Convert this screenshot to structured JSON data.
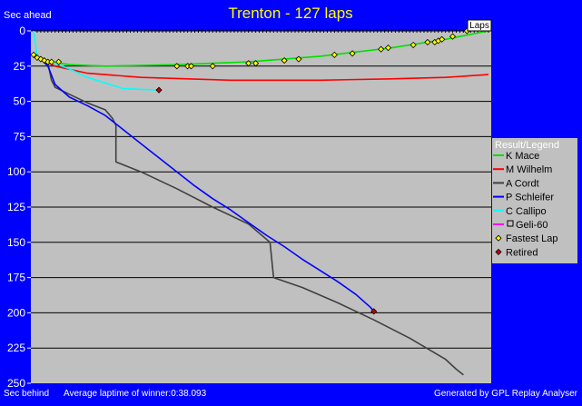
{
  "header": {
    "title": "Trenton - 127 laps",
    "top_left_label": "Sec ahead",
    "laps_label": "Laps"
  },
  "footer": {
    "left_label": "Sec behind",
    "average": "Average laptime of winner:0:38.093",
    "generator": "Generated by GPL Replay Analyser"
  },
  "legend": {
    "title": "Result/Legend",
    "items": [
      {
        "label": "K Mace",
        "color": "#00e000",
        "marker": "line"
      },
      {
        "label": "M Wilhelm",
        "color": "#ff0000",
        "marker": "line"
      },
      {
        "label": "A Cordt",
        "color": "#404040",
        "marker": "line"
      },
      {
        "label": "P Schleifer",
        "color": "#0000ff",
        "marker": "line"
      },
      {
        "label": "C Callipo",
        "color": "#00ffff",
        "marker": "line"
      },
      {
        "label": "Geli-60",
        "color": "#ff00ff",
        "marker": "line-box"
      },
      {
        "label": "Fastest Lap",
        "color": "#ffff00",
        "marker": "diamond"
      },
      {
        "label": "Retired",
        "color": "#ff0000",
        "marker": "diamond-red"
      }
    ]
  },
  "colors": {
    "background": "#0000ff",
    "plot": "#c0c0c0",
    "title": "#ffff00",
    "text": "#ffffff"
  },
  "chart_data": {
    "type": "line",
    "title": "Trenton - 127 laps",
    "xlabel": "Laps",
    "ylabel": "Sec ahead",
    "xlim": [
      0,
      127
    ],
    "ylim": [
      0,
      250
    ],
    "yticks": [
      0,
      25,
      50,
      75,
      100,
      125,
      150,
      175,
      200,
      225,
      250
    ],
    "grid": true,
    "legend_position": "right",
    "series": [
      {
        "name": "K Mace",
        "color": "#00e000",
        "points": [
          [
            0,
            17
          ],
          [
            2,
            20
          ],
          [
            5,
            22
          ],
          [
            10,
            24
          ],
          [
            20,
            25
          ],
          [
            40,
            24
          ],
          [
            60,
            22
          ],
          [
            80,
            18
          ],
          [
            100,
            12
          ],
          [
            115,
            6
          ],
          [
            127,
            0
          ]
        ]
      },
      {
        "name": "M Wilhelm",
        "color": "#ff0000",
        "points": [
          [
            0,
            17
          ],
          [
            2,
            20
          ],
          [
            6,
            25
          ],
          [
            15,
            30
          ],
          [
            30,
            33
          ],
          [
            55,
            35
          ],
          [
            80,
            35
          ],
          [
            100,
            34
          ],
          [
            115,
            33
          ],
          [
            127,
            31
          ]
        ]
      },
      {
        "name": "A Cordt",
        "color": "#404040",
        "points": [
          [
            0,
            17
          ],
          [
            2,
            20
          ],
          [
            4,
            23
          ],
          [
            5,
            35
          ],
          [
            6,
            40
          ],
          [
            10,
            45
          ],
          [
            15,
            51
          ],
          [
            20,
            56
          ],
          [
            22,
            62
          ],
          [
            23,
            67
          ],
          [
            23,
            93
          ],
          [
            30,
            100
          ],
          [
            40,
            112
          ],
          [
            50,
            125
          ],
          [
            60,
            137
          ],
          [
            66,
            150
          ],
          [
            67,
            175
          ],
          [
            75,
            182
          ],
          [
            85,
            193
          ],
          [
            95,
            205
          ],
          [
            105,
            218
          ],
          [
            115,
            233
          ],
          [
            118,
            240
          ],
          [
            120,
            244
          ]
        ]
      },
      {
        "name": "P Schleifer",
        "color": "#0000ff",
        "points": [
          [
            0,
            17
          ],
          [
            2,
            20
          ],
          [
            4,
            25
          ],
          [
            6,
            38
          ],
          [
            10,
            47
          ],
          [
            15,
            53
          ],
          [
            20,
            60
          ],
          [
            25,
            70
          ],
          [
            30,
            80
          ],
          [
            35,
            90
          ],
          [
            40,
            100
          ],
          [
            45,
            110
          ],
          [
            50,
            119
          ],
          [
            55,
            127
          ],
          [
            60,
            136
          ],
          [
            65,
            145
          ],
          [
            70,
            153
          ],
          [
            75,
            162
          ],
          [
            80,
            170
          ],
          [
            85,
            178
          ],
          [
            90,
            187
          ],
          [
            94,
            196
          ],
          [
            95,
            199
          ]
        ]
      },
      {
        "name": "C Callipo",
        "color": "#00ffff",
        "points": [
          [
            0,
            0
          ],
          [
            1,
            18
          ],
          [
            3,
            20
          ],
          [
            6,
            23
          ],
          [
            10,
            27
          ],
          [
            15,
            33
          ],
          [
            20,
            37
          ],
          [
            25,
            41
          ],
          [
            35,
            42
          ]
        ]
      }
    ],
    "fastest_laps": [
      [
        0,
        17
      ],
      [
        1,
        19
      ],
      [
        2,
        20
      ],
      [
        3,
        21
      ],
      [
        4,
        22
      ],
      [
        5,
        22
      ],
      [
        7,
        22
      ],
      [
        40,
        25
      ],
      [
        43,
        25
      ],
      [
        44,
        25
      ],
      [
        50,
        25
      ],
      [
        60,
        23
      ],
      [
        62,
        23
      ],
      [
        70,
        21
      ],
      [
        74,
        20
      ],
      [
        84,
        17
      ],
      [
        89,
        16
      ],
      [
        97,
        13
      ],
      [
        99,
        12
      ],
      [
        106,
        10
      ],
      [
        110,
        8
      ],
      [
        112,
        8
      ],
      [
        113,
        7
      ],
      [
        114,
        6
      ],
      [
        117,
        4
      ],
      [
        121,
        0
      ]
    ],
    "retired": [
      [
        35,
        42
      ],
      [
        95,
        199
      ]
    ]
  }
}
